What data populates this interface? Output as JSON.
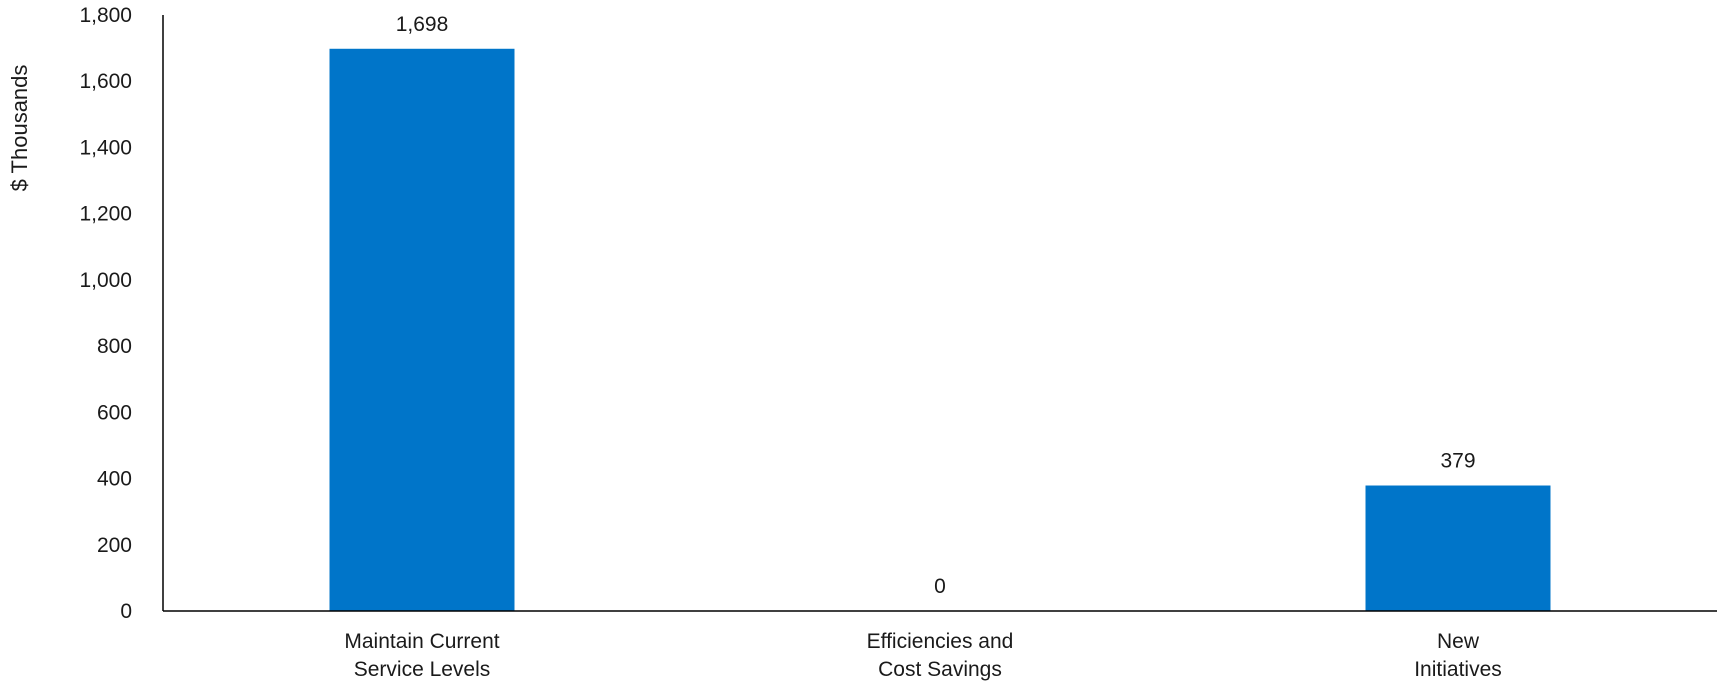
{
  "chart_data": {
    "type": "bar",
    "title": "",
    "xlabel": "",
    "ylabel": "$ Thousands",
    "categories": [
      [
        "Maintain Current",
        "Service Levels"
      ],
      [
        "Efficiencies and",
        "Cost Savings"
      ],
      [
        "New",
        "Initiatives"
      ]
    ],
    "values": [
      1698,
      0,
      379
    ],
    "data_labels": [
      "1,698",
      "0",
      "379"
    ],
    "ylim": [
      0,
      1800
    ],
    "yticks": [
      0,
      200,
      400,
      600,
      800,
      1000,
      1200,
      1400,
      1600,
      1800
    ],
    "ytick_labels": [
      "0",
      "200",
      "400",
      "600",
      "800",
      "1,000",
      "1,200",
      "1,400",
      "1,600",
      "1,800"
    ],
    "grid": false,
    "legend": "none",
    "bar_color": "#0075C9",
    "axis_color": "#000000"
  }
}
